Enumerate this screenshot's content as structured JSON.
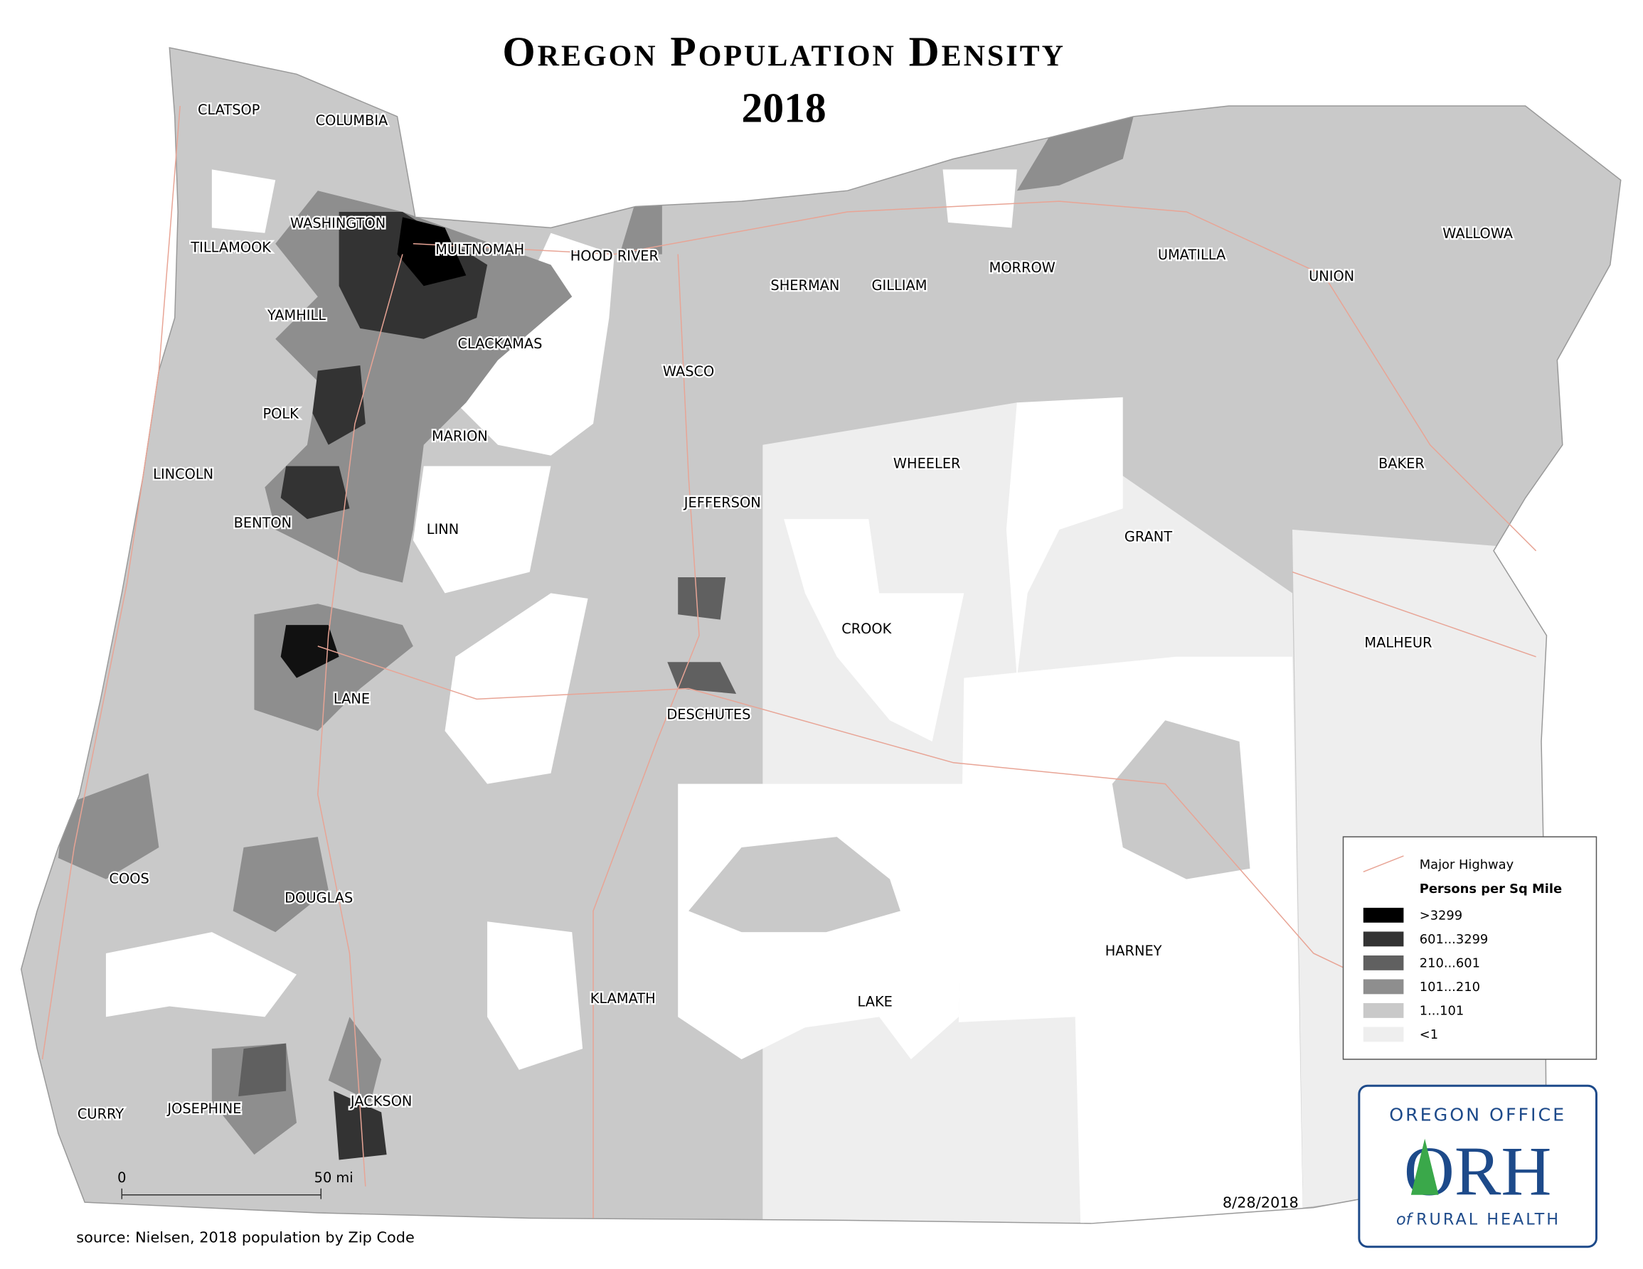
{
  "title": "Oregon Population Density",
  "year": "2018",
  "counties": [
    "CLATSOP",
    "COLUMBIA",
    "WASHINGTON",
    "TILLAMOOK",
    "MULTNOMAH",
    "HOOD RIVER",
    "SHERMAN",
    "GILLIAM",
    "MORROW",
    "UMATILLA",
    "UNION",
    "WALLOWA",
    "YAMHILL",
    "CLACKAMAS",
    "WASCO",
    "POLK",
    "MARION",
    "LINCOLN",
    "WHEELER",
    "BAKER",
    "BENTON",
    "LINN",
    "JEFFERSON",
    "GRANT",
    "CROOK",
    "MALHEUR",
    "LANE",
    "DESCHUTES",
    "COOS",
    "DOUGLAS",
    "HARNEY",
    "KLAMATH",
    "LAKE",
    "CURRY",
    "JOSEPHINE",
    "JACKSON"
  ],
  "legend": {
    "highway": "Major Highway",
    "title": "Persons per Sq Mile",
    "classes": [
      {
        "label": ">3299",
        "color": "#000000"
      },
      {
        "label": "601...3299",
        "color": "#333333"
      },
      {
        "label": "210...601",
        "color": "#606060"
      },
      {
        "label": "101...210",
        "color": "#8e8e8e"
      },
      {
        "label": "1...101",
        "color": "#c9c9c9"
      },
      {
        "label": "<1",
        "color": "#eeeeee"
      }
    ]
  },
  "scale_bar": {
    "start": "0",
    "end": "50 mi"
  },
  "date": "8/28/2018",
  "source": "source: Nielsen, 2018 population by Zip Code",
  "logo": {
    "top": "OREGON OFFICE",
    "main": "ORH",
    "of": "of",
    "bottom": "RURAL HEALTH"
  }
}
